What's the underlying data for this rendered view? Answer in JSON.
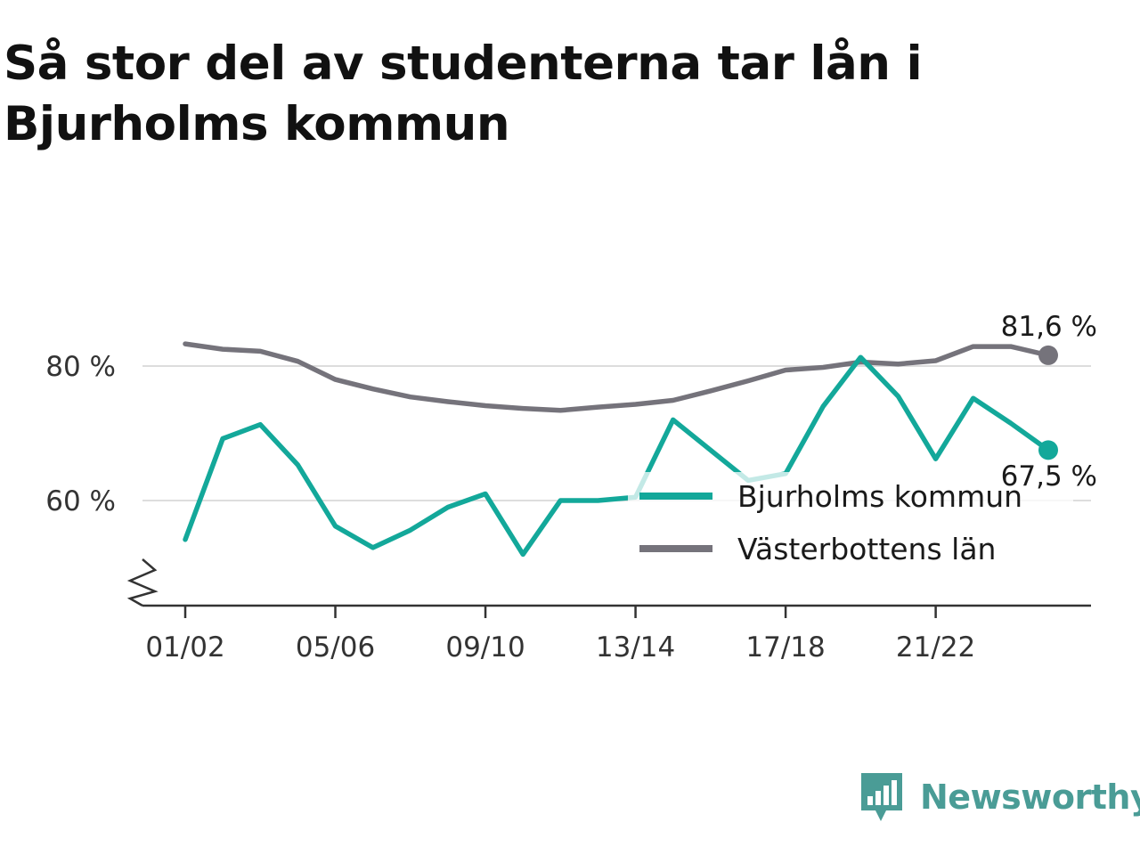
{
  "title": "Så stor del av studenterna tar lån i Bjurholms kommun",
  "brand": {
    "name": "Newsworthy",
    "color": "#4a9c96",
    "icon": "newsworthy-logo-icon"
  },
  "chart_data": {
    "type": "line",
    "title": "Så stor del av studenterna tar lån i Bjurholms kommun",
    "xlabel": "",
    "ylabel": "",
    "ylim": [
      45,
      87
    ],
    "y_ticks": [
      {
        "value": 60,
        "label": "60 %"
      },
      {
        "value": 80,
        "label": "80 %"
      }
    ],
    "x": [
      "01/02",
      "02/03",
      "03/04",
      "04/05",
      "05/06",
      "06/07",
      "07/08",
      "08/09",
      "09/10",
      "10/11",
      "11/12",
      "12/13",
      "13/14",
      "14/15",
      "15/16",
      "16/17",
      "17/18",
      "18/19",
      "19/20",
      "20/21",
      "21/22",
      "22/23",
      "23/24",
      "24/25"
    ],
    "x_tick_labels": [
      "01/02",
      "05/06",
      "09/10",
      "13/14",
      "17/18",
      "21/22"
    ],
    "axis_break": true,
    "grid": "horizontal",
    "legend_position": "bottom-right",
    "series": [
      {
        "name": "Bjurholms kommun",
        "color": "#13a89a",
        "end_label": "67,5 %",
        "values": [
          54.2,
          69.2,
          71.3,
          65.3,
          56.2,
          53.0,
          55.6,
          59.0,
          61.0,
          52.0,
          60.0,
          60.0,
          60.5,
          72.0,
          67.5,
          63.0,
          64.0,
          74.0,
          81.3,
          75.5,
          66.2,
          75.2,
          71.5,
          67.5
        ]
      },
      {
        "name": "Västerbottens län",
        "color": "#75737b",
        "end_label": "81,6 %",
        "values": [
          83.3,
          82.5,
          82.2,
          80.7,
          78.0,
          76.6,
          75.4,
          74.7,
          74.1,
          73.7,
          73.4,
          73.9,
          74.3,
          74.9,
          76.3,
          77.8,
          79.4,
          79.8,
          80.6,
          80.3,
          80.8,
          82.9,
          82.9,
          81.6
        ]
      }
    ]
  }
}
